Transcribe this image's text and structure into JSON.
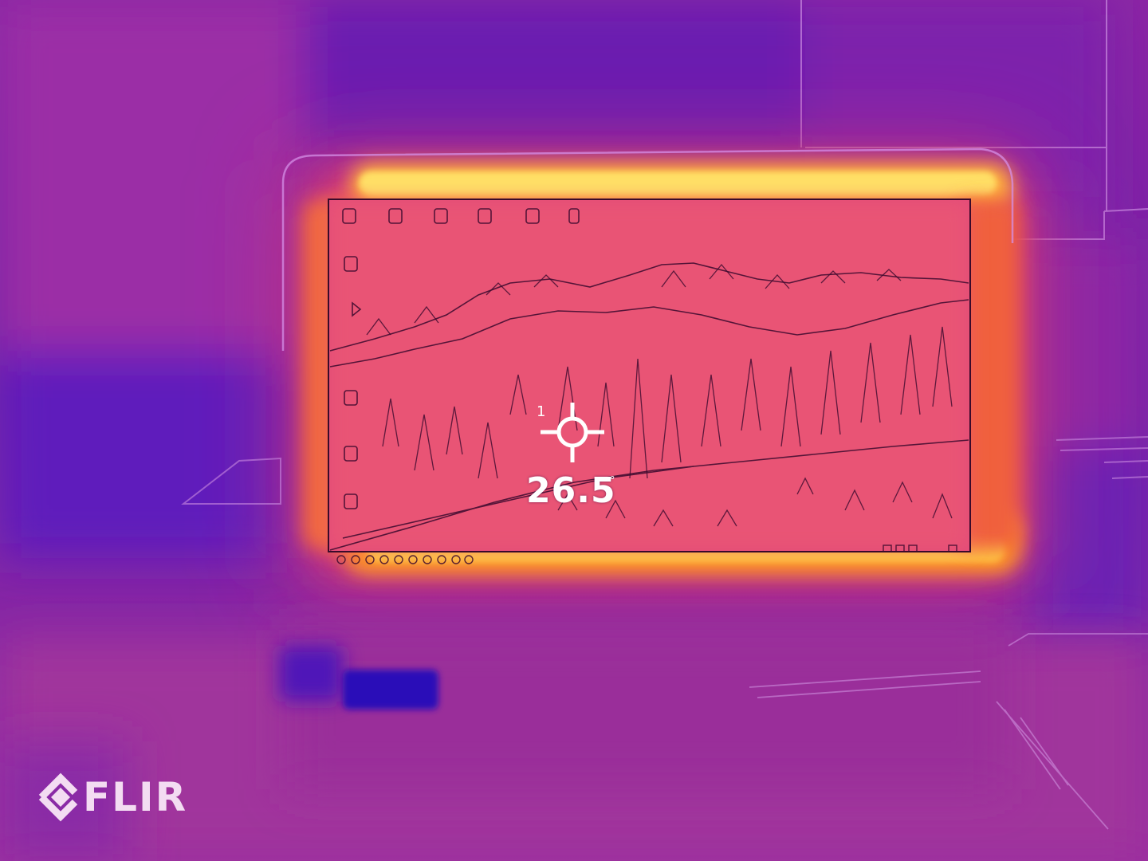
{
  "readout": {
    "spot_index": "1",
    "temperature": "26.5",
    "unit": "°"
  },
  "brand": {
    "name": "FLIR"
  },
  "palette": {
    "background": "#7a1fa6",
    "cool": "#5a1cc2",
    "warm": "#e0308a",
    "hot": "#ff8a1a",
    "hottest": "#ffd24a",
    "overlay_text": "#ffffff"
  }
}
